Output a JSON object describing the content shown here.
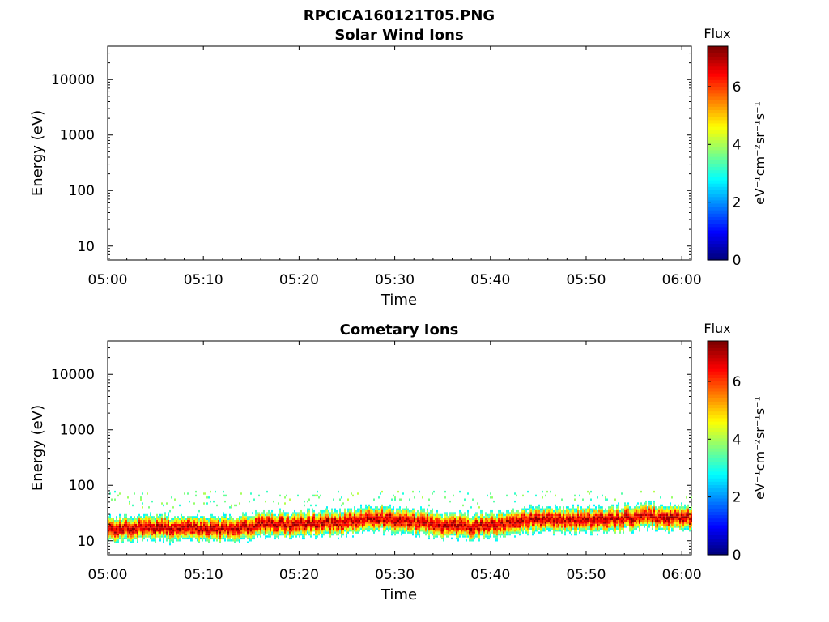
{
  "figure_title": "RPCICA160121T05.PNG",
  "chart_data": [
    {
      "type": "heatmap",
      "title": "Solar Wind Ions",
      "xlabel": "Time",
      "ylabel": "Energy (eV)",
      "x_ticks": [
        "05:00",
        "05:10",
        "05:20",
        "05:30",
        "05:40",
        "05:50",
        "06:00"
      ],
      "x_range_minutes": [
        0,
        61
      ],
      "y_scale": "log",
      "y_ticks": [
        {
          "value": 10,
          "label": "10"
        },
        {
          "value": 100,
          "label": "100"
        },
        {
          "value": 1000,
          "label": "1000"
        },
        {
          "value": 10000,
          "label": "10000"
        }
      ],
      "ylim": [
        5.6,
        40000
      ],
      "colorbar": {
        "title": "Flux",
        "label": "eV⁻¹cm⁻²sr⁻¹s⁻¹",
        "ticks": [
          "0",
          "2",
          "4",
          "6"
        ],
        "range": [
          0,
          7.4
        ],
        "colormap": "jet"
      },
      "data_present": false
    },
    {
      "type": "heatmap",
      "title": "Cometary Ions",
      "xlabel": "Time",
      "ylabel": "Energy (eV)",
      "x_ticks": [
        "05:00",
        "05:10",
        "05:20",
        "05:30",
        "05:40",
        "05:50",
        "06:00"
      ],
      "x_range_minutes": [
        0,
        61
      ],
      "y_scale": "log",
      "y_ticks": [
        {
          "value": 10,
          "label": "10"
        },
        {
          "value": 100,
          "label": "100"
        },
        {
          "value": 1000,
          "label": "1000"
        },
        {
          "value": 10000,
          "label": "10000"
        }
      ],
      "ylim": [
        5.6,
        40000
      ],
      "colorbar": {
        "title": "Flux",
        "label": "eV⁻¹cm⁻²sr⁻¹s⁻¹",
        "ticks": [
          "0",
          "2",
          "4",
          "6"
        ],
        "range": [
          0,
          7.4
        ],
        "colormap": "jet"
      },
      "data_present": true,
      "band": {
        "description_points_minutes_vs_peak_eV": [
          [
            0,
            16
          ],
          [
            5,
            17
          ],
          [
            10,
            16
          ],
          [
            13,
            17
          ],
          [
            16,
            20
          ],
          [
            20,
            20
          ],
          [
            25,
            22
          ],
          [
            28,
            27
          ],
          [
            30,
            24
          ],
          [
            34,
            20
          ],
          [
            38,
            18
          ],
          [
            40,
            19
          ],
          [
            44,
            24
          ],
          [
            48,
            24
          ],
          [
            52,
            24
          ],
          [
            56,
            28
          ],
          [
            60,
            26
          ]
        ],
        "energy_range_eV": [
          6,
          80
        ],
        "peak_flux": 6.8
      }
    }
  ]
}
